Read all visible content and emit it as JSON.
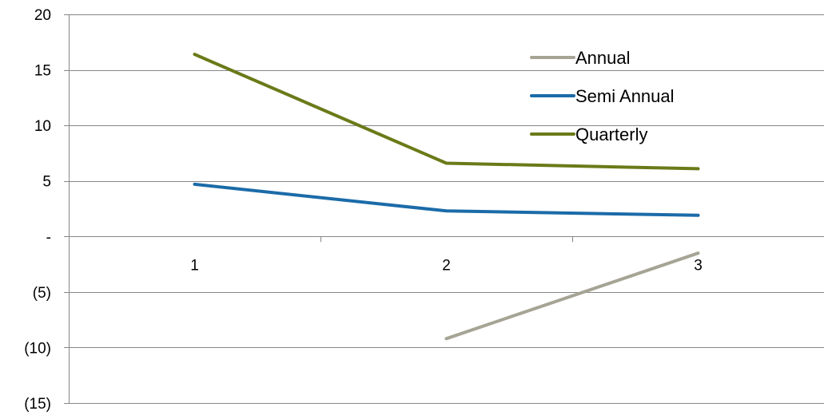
{
  "chart_data": {
    "type": "line",
    "x": [
      1,
      2,
      3
    ],
    "x_tick_labels": [
      "1",
      "2",
      "3"
    ],
    "series": [
      {
        "name": "Annual",
        "color": "#A5A495",
        "values": [
          null,
          -9.2,
          -1.5
        ]
      },
      {
        "name": "Semi Annual",
        "color": "#1B6BA8",
        "values": [
          4.7,
          2.3,
          1.9
        ]
      },
      {
        "name": "Quarterly",
        "color": "#6B7A18",
        "values": [
          16.4,
          6.6,
          6.1
        ]
      }
    ],
    "y_ticks": [
      20,
      15,
      10,
      5,
      0,
      -5,
      -10,
      -15
    ],
    "y_tick_labels": [
      "20",
      "15",
      "10",
      "5",
      "-",
      "(5)",
      "(10)",
      "(15)"
    ],
    "ylim": [
      -15,
      20
    ],
    "title": "",
    "xlabel": "",
    "ylabel": "",
    "grid": "horizontal",
    "legend_position": "top-right",
    "colors": {
      "gridline": "#868686",
      "axis": "#868686"
    }
  }
}
